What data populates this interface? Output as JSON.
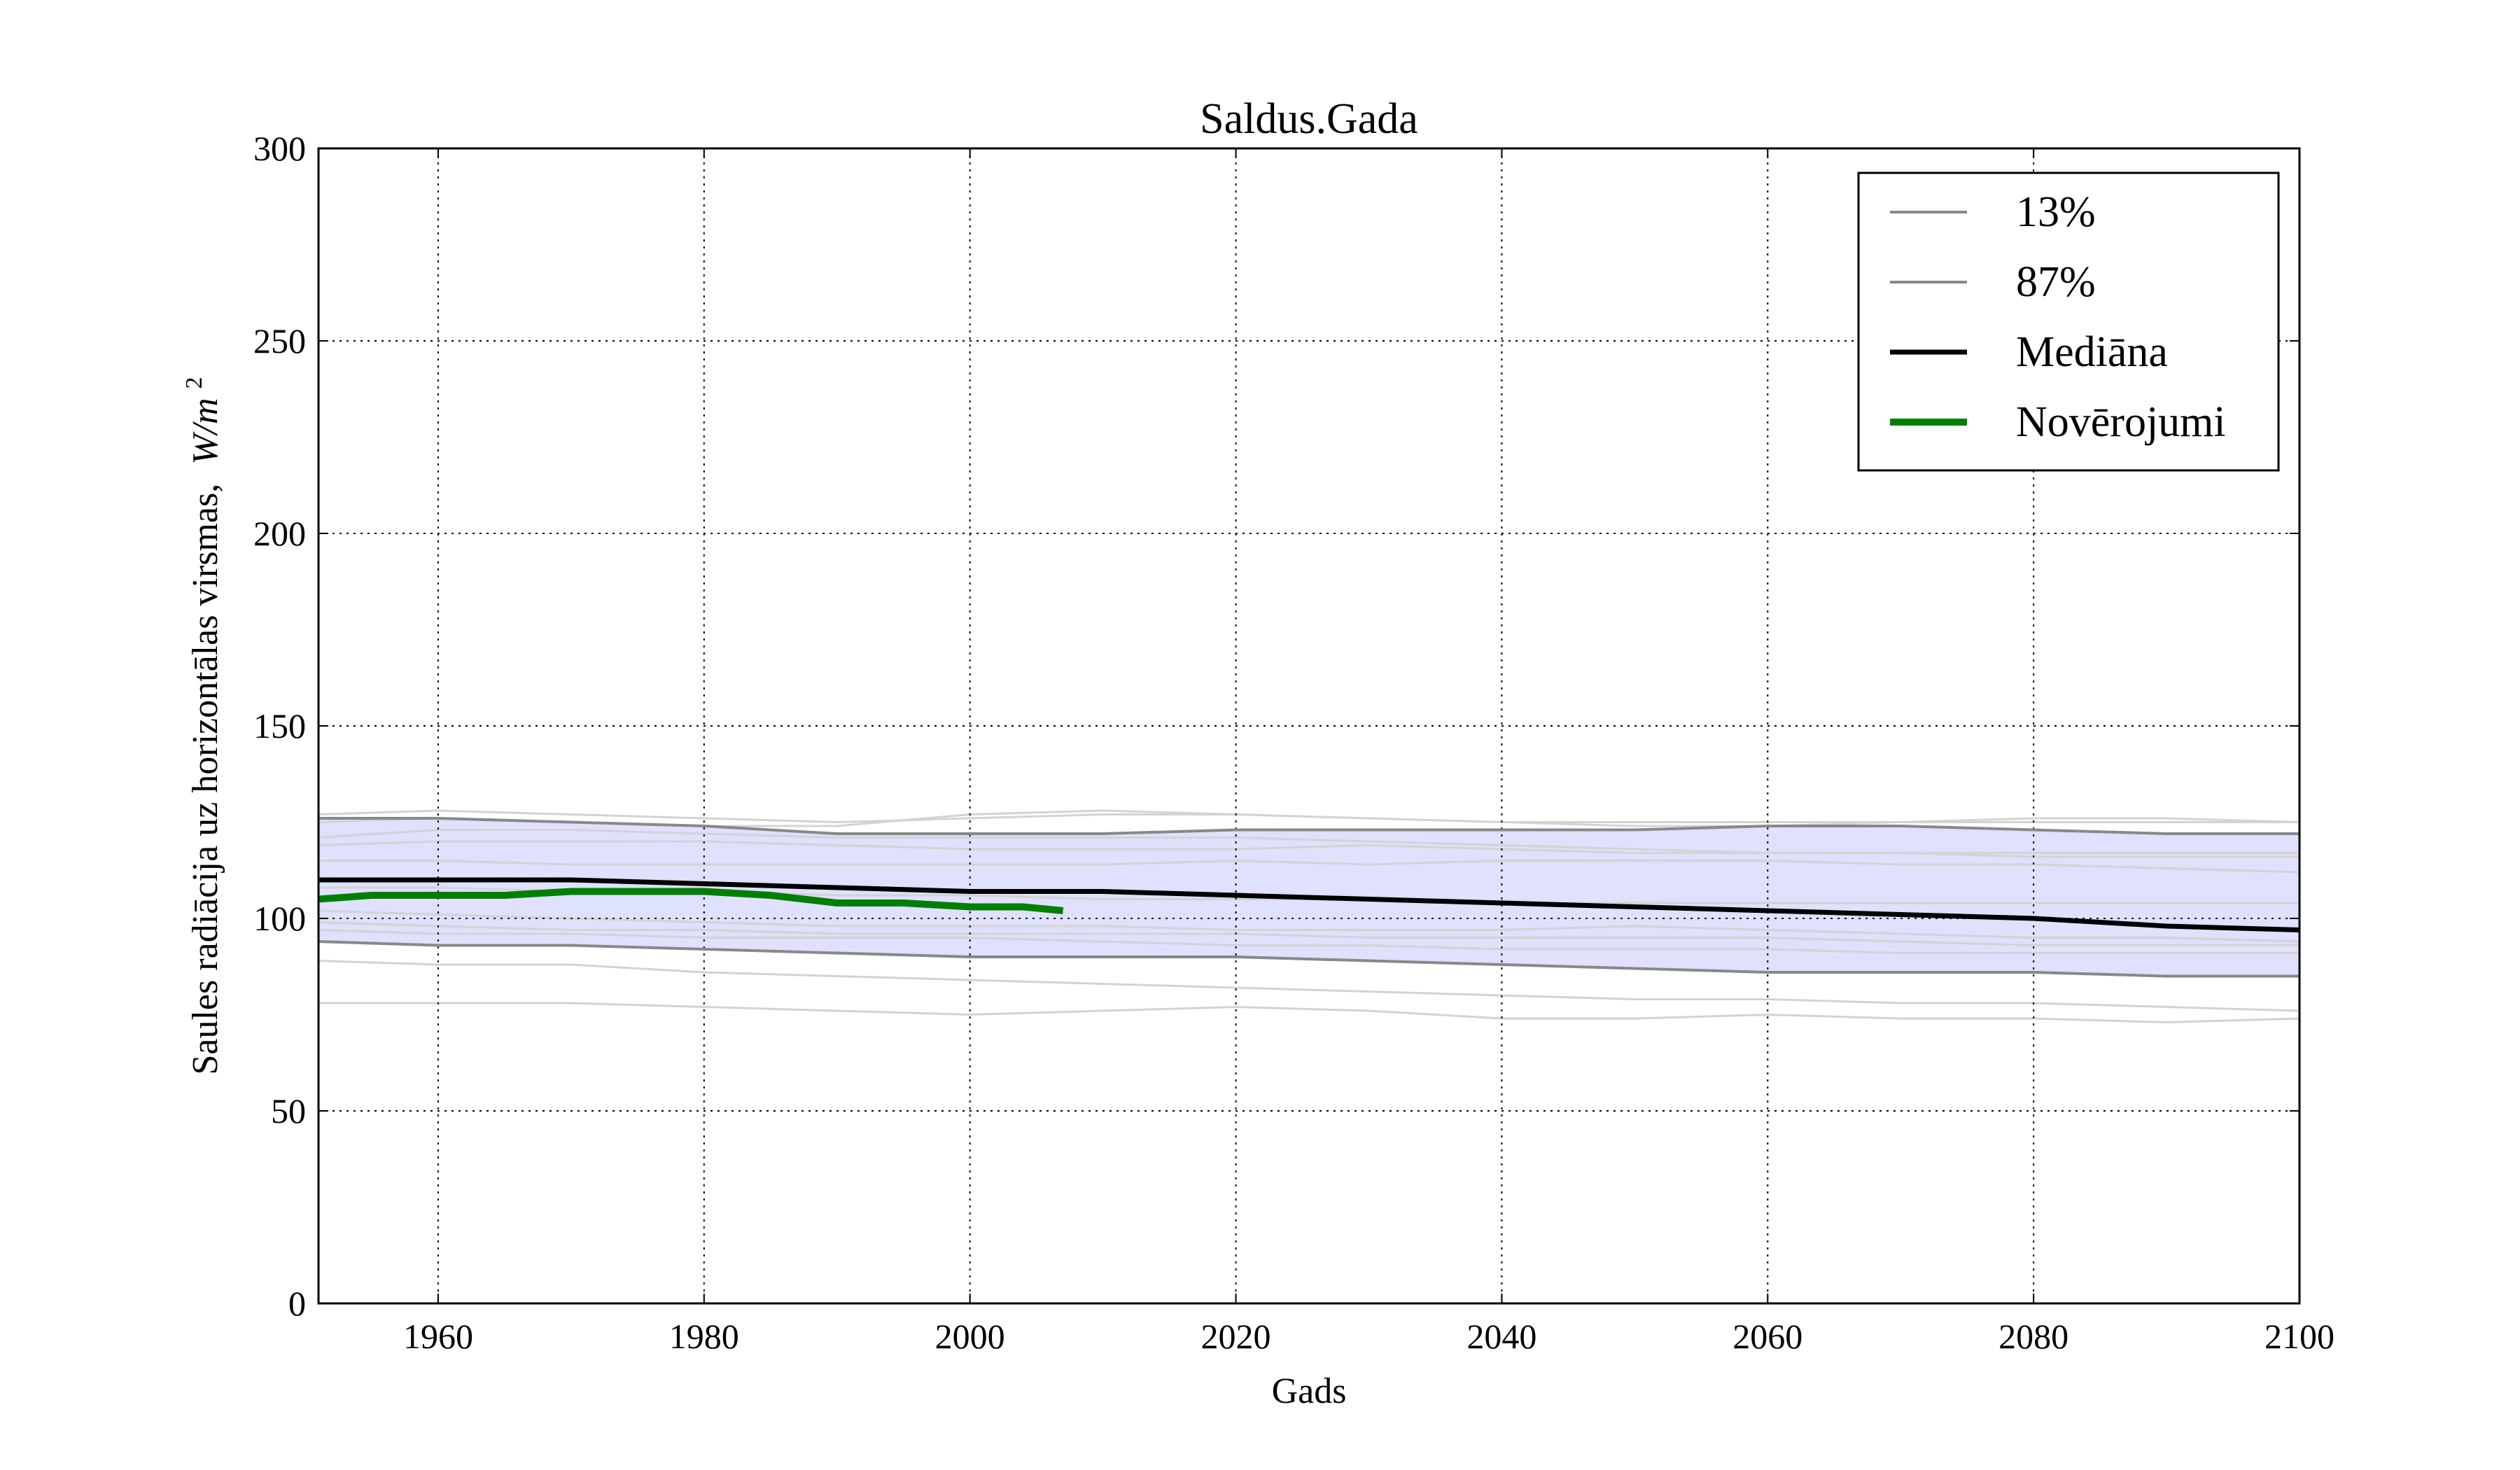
{
  "chart_data": {
    "type": "line",
    "title": "Saldus.Gada",
    "xlabel": "Gads",
    "ylabel": "Saules radiācija uz horizontālas virsmas,",
    "ylabel_unit_main": "W/m",
    "ylabel_unit_exp": "2",
    "xlim": [
      1951,
      2100
    ],
    "ylim": [
      0,
      300
    ],
    "xticks": [
      1960,
      1980,
      2000,
      2020,
      2040,
      2060,
      2080,
      2100
    ],
    "yticks": [
      0,
      50,
      100,
      150,
      200,
      250,
      300
    ],
    "grid": true,
    "legend_position": "top-right",
    "band": {
      "color": "#e0e0ff",
      "upper_x": [
        1951,
        1960,
        1970,
        1980,
        1990,
        2000,
        2010,
        2020,
        2030,
        2040,
        2050,
        2060,
        2070,
        2080,
        2090,
        2100
      ],
      "upper_y": [
        126,
        126,
        125,
        124,
        122,
        122,
        122,
        123,
        123,
        123,
        123,
        124,
        124,
        123,
        122,
        122
      ],
      "lower_x": [
        1951,
        1960,
        1970,
        1980,
        1990,
        2000,
        2010,
        2020,
        2030,
        2040,
        2050,
        2060,
        2070,
        2080,
        2090,
        2100
      ],
      "lower_y": [
        94,
        93,
        93,
        92,
        91,
        90,
        90,
        90,
        89,
        88,
        87,
        86,
        86,
        86,
        85,
        85
      ]
    },
    "series": [
      {
        "name": "13%",
        "color": "#888888",
        "width": 2,
        "x": [
          1951,
          1960,
          1970,
          1980,
          1990,
          2000,
          2010,
          2020,
          2030,
          2040,
          2050,
          2060,
          2070,
          2080,
          2090,
          2100
        ],
        "y": [
          126,
          126,
          125,
          124,
          122,
          122,
          122,
          123,
          123,
          123,
          123,
          124,
          124,
          123,
          122,
          122
        ]
      },
      {
        "name": "87%",
        "color": "#888888",
        "width": 2,
        "x": [
          1951,
          1960,
          1970,
          1980,
          1990,
          2000,
          2010,
          2020,
          2030,
          2040,
          2050,
          2060,
          2070,
          2080,
          2090,
          2100
        ],
        "y": [
          94,
          93,
          93,
          92,
          91,
          90,
          90,
          90,
          89,
          88,
          87,
          86,
          86,
          86,
          85,
          85
        ]
      },
      {
        "name": "Mediāna",
        "color": "#000000",
        "width": 3,
        "x": [
          1951,
          1960,
          1970,
          1980,
          1990,
          2000,
          2010,
          2020,
          2030,
          2040,
          2050,
          2060,
          2070,
          2080,
          2090,
          2100
        ],
        "y": [
          110,
          110,
          110,
          109,
          108,
          107,
          107,
          106,
          105,
          104,
          103,
          102,
          101,
          100,
          98,
          97
        ]
      },
      {
        "name": "Novērojumi",
        "color": "#008000",
        "width": 4,
        "x": [
          1951,
          1955,
          1960,
          1965,
          1970,
          1975,
          1980,
          1985,
          1990,
          1995,
          2000,
          2004,
          2007
        ],
        "y": [
          105,
          106,
          106,
          106,
          107,
          107,
          107,
          106,
          104,
          104,
          103,
          103,
          102
        ]
      }
    ],
    "background_lines": {
      "color": "#d3d3d3",
      "x": [
        1951,
        1960,
        1970,
        1980,
        1990,
        2000,
        2010,
        2020,
        2030,
        2040,
        2050,
        2060,
        2070,
        2080,
        2090,
        2100
      ],
      "lines": [
        [
          127,
          128,
          127,
          126,
          125,
          126,
          127,
          127,
          126,
          125,
          125,
          125,
          125,
          126,
          126,
          125
        ],
        [
          125,
          126,
          125,
          124,
          124,
          127,
          128,
          127,
          126,
          125,
          124,
          124,
          125,
          125,
          125,
          125
        ],
        [
          121,
          123,
          123,
          122,
          121,
          121,
          121,
          121,
          120,
          119,
          118,
          117,
          117,
          116,
          116,
          116
        ],
        [
          119,
          120,
          120,
          120,
          119,
          118,
          118,
          118,
          119,
          118,
          117,
          117,
          117,
          117,
          117,
          117
        ],
        [
          115,
          115,
          114,
          114,
          114,
          114,
          114,
          115,
          114,
          115,
          115,
          115,
          114,
          114,
          113,
          112
        ],
        [
          108,
          108,
          107,
          107,
          106,
          106,
          105,
          105,
          105,
          104,
          104,
          104,
          104,
          104,
          104,
          104
        ],
        [
          102,
          101,
          100,
          99,
          98,
          98,
          98,
          97,
          97,
          97,
          98,
          97,
          96,
          95,
          95,
          94
        ],
        [
          99,
          98,
          97,
          97,
          96,
          96,
          96,
          96,
          95,
          95,
          95,
          95,
          94,
          93,
          93,
          93
        ],
        [
          97,
          96,
          96,
          95,
          95,
          95,
          94,
          93,
          93,
          92,
          92,
          92,
          91,
          91,
          91,
          91
        ],
        [
          89,
          88,
          88,
          86,
          85,
          84,
          83,
          82,
          81,
          80,
          79,
          79,
          78,
          78,
          77,
          76
        ],
        [
          78,
          78,
          78,
          77,
          76,
          75,
          76,
          77,
          76,
          74,
          74,
          75,
          74,
          74,
          73,
          74
        ]
      ]
    }
  }
}
